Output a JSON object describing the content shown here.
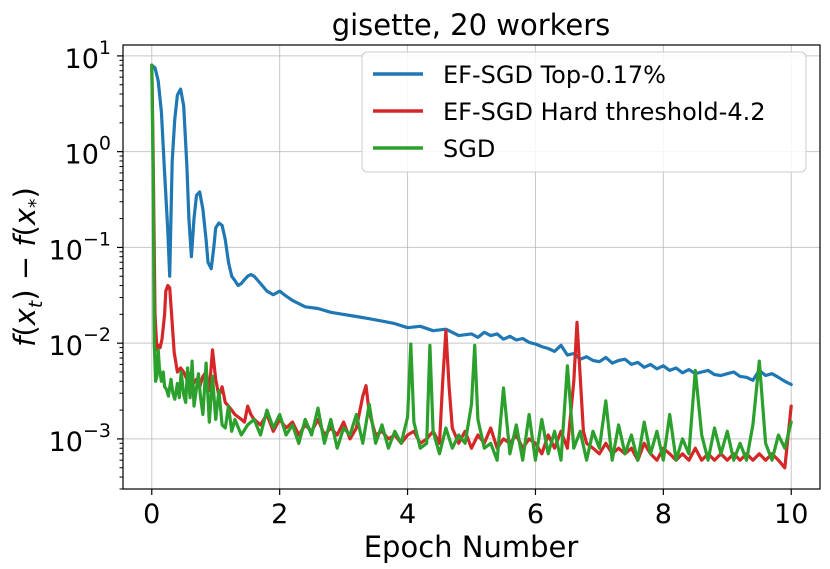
{
  "chart_data": {
    "type": "line",
    "title": "gisette, 20 workers",
    "xlabel": "Epoch Number",
    "ylabel": "f(x_t) − f(x_*)",
    "ylabel_parts": {
      "f1": "f",
      "open1": "(",
      "x1": "x",
      "sub1": "t",
      "close1": ")",
      "minus": " − ",
      "f2": "f",
      "open2": "(",
      "x2": "x",
      "sub2": "*",
      "close2": ")"
    },
    "xlim": [
      -0.45,
      10.45
    ],
    "ylim": [
      0.0003,
      13
    ],
    "yscale": "log",
    "grid": true,
    "legend_position": "top-right",
    "x_ticks": [
      0,
      2,
      4,
      6,
      8,
      10
    ],
    "x_tick_labels": [
      "0",
      "2",
      "4",
      "6",
      "8",
      "10"
    ],
    "y_ticks": [
      {
        "value": 10,
        "base": "10",
        "exp": "1"
      },
      {
        "value": 1,
        "base": "10",
        "exp": "0"
      },
      {
        "value": 0.1,
        "base": "10",
        "exp": "−1"
      },
      {
        "value": 0.01,
        "base": "10",
        "exp": "−2"
      },
      {
        "value": 0.001,
        "base": "10",
        "exp": "−3"
      }
    ],
    "series": [
      {
        "name": "EF-SGD Top-0.17%",
        "color": "#1f77b4",
        "x": [
          0,
          0.05,
          0.1,
          0.15,
          0.2,
          0.25,
          0.28,
          0.32,
          0.36,
          0.4,
          0.45,
          0.5,
          0.55,
          0.58,
          0.62,
          0.66,
          0.7,
          0.75,
          0.8,
          0.85,
          0.88,
          0.93,
          0.97,
          1.0,
          1.05,
          1.1,
          1.15,
          1.2,
          1.25,
          1.3,
          1.35,
          1.4,
          1.45,
          1.5,
          1.55,
          1.6,
          1.7,
          1.8,
          1.9,
          2.0,
          2.1,
          2.2,
          2.4,
          2.6,
          2.8,
          3.0,
          3.2,
          3.4,
          3.6,
          3.8,
          4.0,
          4.2,
          4.4,
          4.6,
          4.8,
          5.0,
          5.1,
          5.2,
          5.3,
          5.4,
          5.5,
          5.6,
          5.7,
          5.8,
          5.9,
          6.0,
          6.1,
          6.2,
          6.3,
          6.4,
          6.5,
          6.6,
          6.7,
          6.8,
          6.9,
          7.0,
          7.1,
          7.2,
          7.3,
          7.4,
          7.5,
          7.6,
          7.7,
          7.8,
          7.9,
          8.0,
          8.1,
          8.2,
          8.3,
          8.4,
          8.5,
          8.6,
          8.7,
          8.8,
          8.9,
          9.0,
          9.1,
          9.2,
          9.3,
          9.4,
          9.5,
          9.6,
          9.7,
          9.8,
          9.9,
          10.0
        ],
        "y": [
          8,
          7.5,
          5.5,
          2.6,
          0.6,
          0.15,
          0.05,
          0.8,
          2.2,
          3.9,
          4.5,
          3.0,
          0.7,
          0.2,
          0.08,
          0.2,
          0.35,
          0.38,
          0.25,
          0.12,
          0.07,
          0.06,
          0.1,
          0.16,
          0.18,
          0.17,
          0.12,
          0.07,
          0.05,
          0.045,
          0.04,
          0.042,
          0.046,
          0.05,
          0.052,
          0.05,
          0.042,
          0.035,
          0.032,
          0.035,
          0.031,
          0.028,
          0.024,
          0.023,
          0.021,
          0.02,
          0.019,
          0.018,
          0.017,
          0.016,
          0.0145,
          0.015,
          0.0135,
          0.014,
          0.012,
          0.0125,
          0.0115,
          0.013,
          0.012,
          0.0125,
          0.011,
          0.0118,
          0.0108,
          0.0112,
          0.0102,
          0.0098,
          0.0092,
          0.0088,
          0.0082,
          0.0095,
          0.0075,
          0.0078,
          0.0068,
          0.0072,
          0.0066,
          0.0064,
          0.0071,
          0.0062,
          0.0066,
          0.0068,
          0.006,
          0.0063,
          0.0056,
          0.006,
          0.0054,
          0.0058,
          0.0052,
          0.0055,
          0.0049,
          0.0053,
          0.0048,
          0.005,
          0.0052,
          0.0047,
          0.0046,
          0.0048,
          0.005,
          0.0045,
          0.0044,
          0.0041,
          0.0052,
          0.0046,
          0.0048,
          0.0044,
          0.004,
          0.0037
        ]
      },
      {
        "name": "EF-SGD Hard threshold-4.2",
        "color": "#d62728",
        "x": [
          0,
          0.02,
          0.05,
          0.08,
          0.1,
          0.13,
          0.16,
          0.2,
          0.22,
          0.25,
          0.28,
          0.31,
          0.35,
          0.4,
          0.45,
          0.5,
          0.55,
          0.6,
          0.65,
          0.7,
          0.75,
          0.8,
          0.85,
          0.9,
          0.95,
          1.0,
          1.05,
          1.1,
          1.15,
          1.2,
          1.25,
          1.3,
          1.35,
          1.4,
          1.45,
          1.5,
          1.55,
          1.6,
          1.7,
          1.8,
          1.9,
          2.0,
          2.1,
          2.2,
          2.3,
          2.4,
          2.5,
          2.6,
          2.7,
          2.8,
          2.9,
          3.0,
          3.1,
          3.2,
          3.3,
          3.35,
          3.4,
          3.5,
          3.6,
          3.7,
          3.8,
          3.9,
          4.0,
          4.1,
          4.2,
          4.3,
          4.4,
          4.5,
          4.55,
          4.6,
          4.65,
          4.7,
          4.8,
          4.9,
          5.0,
          5.1,
          5.2,
          5.3,
          5.4,
          5.5,
          5.6,
          5.7,
          5.8,
          5.9,
          6.0,
          6.1,
          6.2,
          6.3,
          6.4,
          6.5,
          6.6,
          6.65,
          6.7,
          6.75,
          6.8,
          6.9,
          7.0,
          7.1,
          7.2,
          7.3,
          7.4,
          7.5,
          7.6,
          7.7,
          7.8,
          7.9,
          8.0,
          8.1,
          8.2,
          8.3,
          8.4,
          8.5,
          8.6,
          8.7,
          8.8,
          8.9,
          9.0,
          9.1,
          9.2,
          9.3,
          9.4,
          9.5,
          9.6,
          9.7,
          9.8,
          9.9,
          10.0
        ],
        "y": [
          8,
          1.0,
          0.02,
          0.0085,
          0.0095,
          0.009,
          0.011,
          0.02,
          0.035,
          0.04,
          0.038,
          0.02,
          0.008,
          0.005,
          0.0055,
          0.005,
          0.0042,
          0.0048,
          0.0038,
          0.0042,
          0.0035,
          0.0045,
          0.005,
          0.0032,
          0.0085,
          0.0042,
          0.0028,
          0.0035,
          0.0024,
          0.0022,
          0.002,
          0.0018,
          0.0017,
          0.0016,
          0.0015,
          0.0022,
          0.0018,
          0.0016,
          0.0014,
          0.0018,
          0.0012,
          0.0016,
          0.0013,
          0.0015,
          0.0011,
          0.0014,
          0.0012,
          0.0016,
          0.0011,
          0.0013,
          0.0011,
          0.0015,
          0.001,
          0.0013,
          0.0028,
          0.0036,
          0.0019,
          0.0011,
          0.0012,
          0.001,
          0.0011,
          0.0009,
          0.0011,
          0.0012,
          0.0009,
          0.001,
          0.0012,
          0.0009,
          0.004,
          0.0135,
          0.0035,
          0.0013,
          0.0009,
          0.0012,
          0.0008,
          0.0011,
          0.0009,
          0.0013,
          0.0008,
          0.001,
          0.0009,
          0.0011,
          0.0008,
          0.001,
          0.0009,
          0.0007,
          0.0011,
          0.0008,
          0.0012,
          0.0008,
          0.004,
          0.0165,
          0.0045,
          0.0012,
          0.0009,
          0.0008,
          0.0007,
          0.0009,
          0.0007,
          0.0008,
          0.0007,
          0.0008,
          0.0006,
          0.0009,
          0.0007,
          0.0006,
          0.0008,
          0.0007,
          0.0006,
          0.0007,
          0.0006,
          0.0008,
          0.0006,
          0.0007,
          0.0006,
          0.0007,
          0.0006,
          0.0007,
          0.0006,
          0.0007,
          0.0006,
          0.0007,
          0.0006,
          0.0007,
          0.0006,
          0.0005,
          0.0022
        ]
      },
      {
        "name": "SGD",
        "color": "#2ca02c",
        "x": [
          0,
          0.02,
          0.04,
          0.06,
          0.08,
          0.1,
          0.12,
          0.15,
          0.18,
          0.2,
          0.23,
          0.26,
          0.3,
          0.33,
          0.36,
          0.4,
          0.43,
          0.46,
          0.5,
          0.53,
          0.56,
          0.6,
          0.63,
          0.66,
          0.7,
          0.73,
          0.76,
          0.8,
          0.85,
          0.9,
          0.95,
          1.0,
          1.05,
          1.1,
          1.15,
          1.2,
          1.25,
          1.3,
          1.4,
          1.5,
          1.6,
          1.7,
          1.8,
          1.9,
          2.0,
          2.1,
          2.2,
          2.3,
          2.4,
          2.5,
          2.6,
          2.7,
          2.8,
          2.9,
          3.0,
          3.1,
          3.2,
          3.3,
          3.4,
          3.5,
          3.6,
          3.7,
          3.8,
          3.9,
          4.0,
          4.05,
          4.1,
          4.2,
          4.3,
          4.35,
          4.4,
          4.5,
          4.6,
          4.7,
          4.8,
          4.9,
          5.0,
          5.05,
          5.1,
          5.2,
          5.3,
          5.4,
          5.5,
          5.6,
          5.7,
          5.8,
          5.9,
          6.0,
          6.1,
          6.2,
          6.3,
          6.4,
          6.5,
          6.6,
          6.7,
          6.8,
          6.9,
          7.0,
          7.1,
          7.2,
          7.3,
          7.4,
          7.5,
          7.6,
          7.7,
          7.8,
          7.9,
          8.0,
          8.1,
          8.2,
          8.3,
          8.4,
          8.5,
          8.6,
          8.7,
          8.8,
          8.9,
          9.0,
          9.1,
          9.2,
          9.3,
          9.4,
          9.5,
          9.6,
          9.7,
          9.8,
          9.9,
          10.0
        ],
        "y": [
          8,
          0.6,
          0.01,
          0.004,
          0.0045,
          0.0085,
          0.0055,
          0.004,
          0.005,
          0.0035,
          0.0033,
          0.0028,
          0.0042,
          0.003,
          0.0026,
          0.0038,
          0.0027,
          0.005,
          0.0029,
          0.0024,
          0.0055,
          0.0027,
          0.0065,
          0.0022,
          0.0034,
          0.0048,
          0.0028,
          0.0018,
          0.0062,
          0.0015,
          0.0045,
          0.0016,
          0.0032,
          0.0014,
          0.0013,
          0.0022,
          0.0012,
          0.0016,
          0.0011,
          0.0014,
          0.0016,
          0.0011,
          0.002,
          0.0013,
          0.0018,
          0.0011,
          0.0014,
          0.0009,
          0.0016,
          0.0011,
          0.0021,
          0.0009,
          0.0016,
          0.0008,
          0.0013,
          0.0011,
          0.0018,
          0.0009,
          0.0023,
          0.0009,
          0.0014,
          0.0008,
          0.0012,
          0.0009,
          0.0017,
          0.0098,
          0.0015,
          0.0008,
          0.0009,
          0.0095,
          0.0012,
          0.0007,
          0.0013,
          0.0008,
          0.0011,
          0.0009,
          0.0023,
          0.0095,
          0.0016,
          0.0008,
          0.0009,
          0.0006,
          0.0034,
          0.0007,
          0.0014,
          0.0006,
          0.0018,
          0.0006,
          0.0016,
          0.0007,
          0.0012,
          0.0006,
          0.0058,
          0.0008,
          0.0012,
          0.0006,
          0.0012,
          0.0008,
          0.0025,
          0.0006,
          0.0014,
          0.0007,
          0.0011,
          0.0006,
          0.0015,
          0.0007,
          0.0012,
          0.0006,
          0.0018,
          0.0006,
          0.001,
          0.0007,
          0.0052,
          0.0011,
          0.0006,
          0.0013,
          0.0007,
          0.0012,
          0.0006,
          0.0009,
          0.0006,
          0.0014,
          0.0065,
          0.0009,
          0.0006,
          0.0011,
          0.0008,
          0.0015
        ]
      }
    ]
  }
}
